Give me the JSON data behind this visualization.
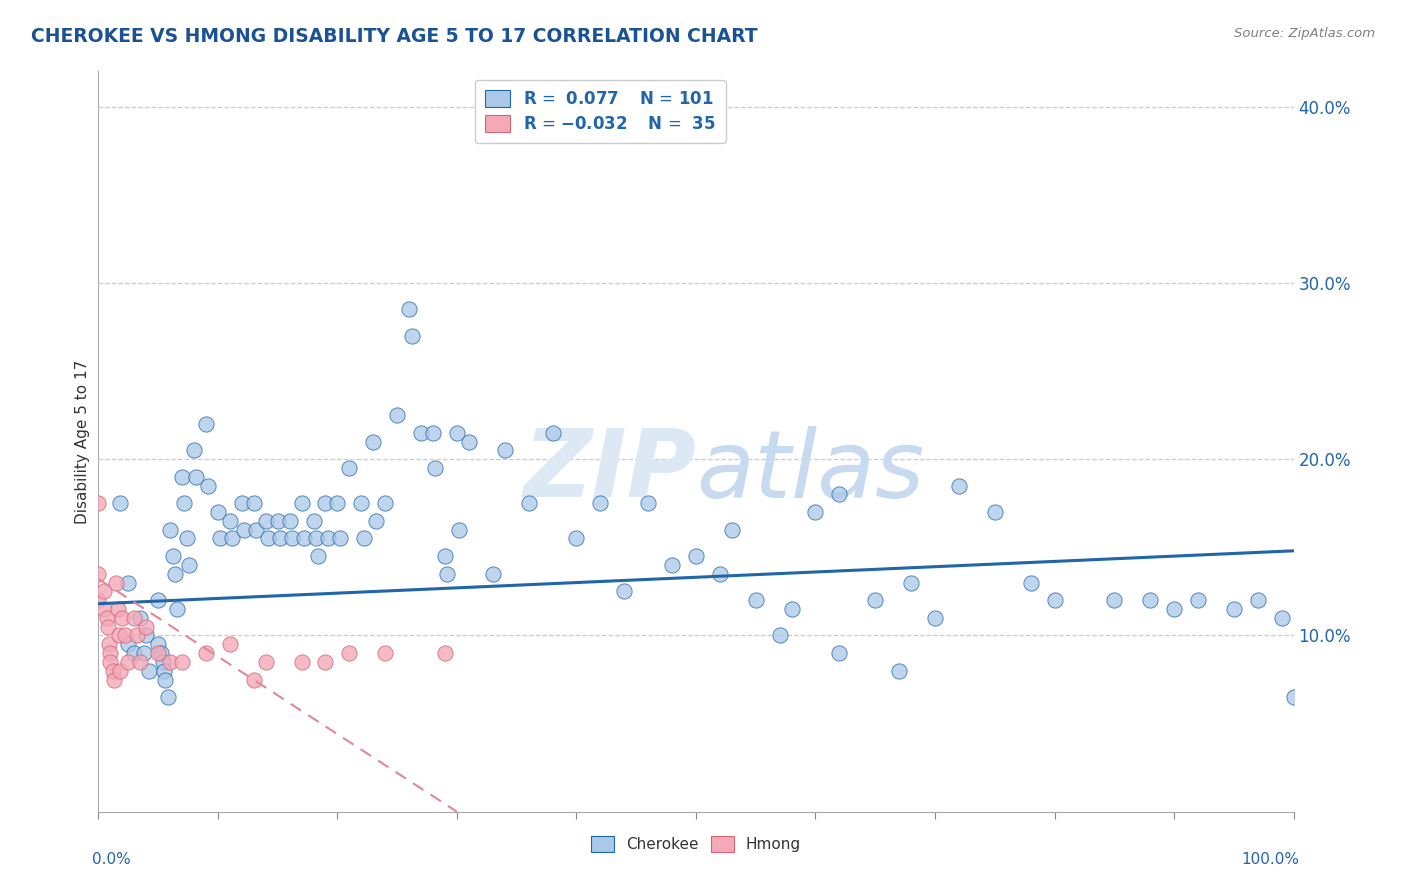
{
  "title": "CHEROKEE VS HMONG DISABILITY AGE 5 TO 17 CORRELATION CHART",
  "source": "Source: ZipAtlas.com",
  "ylabel": "Disability Age 5 to 17",
  "y_ticks": [
    0.0,
    0.1,
    0.2,
    0.3,
    0.4
  ],
  "y_tick_labels": [
    "",
    "10.0%",
    "20.0%",
    "30.0%",
    "40.0%"
  ],
  "x_range": [
    0,
    1.0
  ],
  "y_range": [
    0,
    0.42
  ],
  "cherokee_R": 0.077,
  "cherokee_N": 101,
  "hmong_R": -0.032,
  "hmong_N": 35,
  "cherokee_color": "#aac8e8",
  "hmong_color": "#f4a8b8",
  "cherokee_line_color": "#2266aa",
  "hmong_line_color": "#e08898",
  "background_color": "#ffffff",
  "title_color": "#1a5296",
  "source_color": "#808080",
  "watermark_color": "#dce8f4",
  "cherokee_x": [
    0.018,
    0.025,
    0.025,
    0.03,
    0.035,
    0.038,
    0.04,
    0.042,
    0.05,
    0.05,
    0.052,
    0.054,
    0.055,
    0.056,
    0.058,
    0.06,
    0.062,
    0.064,
    0.066,
    0.07,
    0.072,
    0.074,
    0.076,
    0.08,
    0.082,
    0.09,
    0.092,
    0.1,
    0.102,
    0.11,
    0.112,
    0.12,
    0.122,
    0.13,
    0.132,
    0.14,
    0.142,
    0.15,
    0.152,
    0.16,
    0.162,
    0.17,
    0.172,
    0.18,
    0.182,
    0.184,
    0.19,
    0.192,
    0.2,
    0.202,
    0.21,
    0.22,
    0.222,
    0.23,
    0.232,
    0.24,
    0.25,
    0.26,
    0.262,
    0.27,
    0.28,
    0.282,
    0.29,
    0.292,
    0.3,
    0.302,
    0.31,
    0.33,
    0.34,
    0.36,
    0.38,
    0.4,
    0.42,
    0.44,
    0.46,
    0.5,
    0.52,
    0.55,
    0.58,
    0.6,
    0.62,
    0.65,
    0.68,
    0.7,
    0.75,
    0.78,
    0.8,
    0.85,
    0.88,
    0.9,
    0.92,
    0.95,
    0.97,
    0.99,
    1.0,
    0.48,
    0.53,
    0.57,
    0.62,
    0.67,
    0.72
  ],
  "cherokee_y": [
    0.175,
    0.13,
    0.095,
    0.09,
    0.11,
    0.09,
    0.1,
    0.08,
    0.12,
    0.095,
    0.09,
    0.085,
    0.08,
    0.075,
    0.065,
    0.16,
    0.145,
    0.135,
    0.115,
    0.19,
    0.175,
    0.155,
    0.14,
    0.205,
    0.19,
    0.22,
    0.185,
    0.17,
    0.155,
    0.165,
    0.155,
    0.175,
    0.16,
    0.175,
    0.16,
    0.165,
    0.155,
    0.165,
    0.155,
    0.165,
    0.155,
    0.175,
    0.155,
    0.165,
    0.155,
    0.145,
    0.175,
    0.155,
    0.175,
    0.155,
    0.195,
    0.175,
    0.155,
    0.21,
    0.165,
    0.175,
    0.225,
    0.285,
    0.27,
    0.215,
    0.215,
    0.195,
    0.145,
    0.135,
    0.215,
    0.16,
    0.21,
    0.135,
    0.205,
    0.175,
    0.215,
    0.155,
    0.175,
    0.125,
    0.175,
    0.145,
    0.135,
    0.12,
    0.115,
    0.17,
    0.18,
    0.12,
    0.13,
    0.11,
    0.17,
    0.13,
    0.12,
    0.12,
    0.12,
    0.115,
    0.12,
    0.115,
    0.12,
    0.11,
    0.065,
    0.14,
    0.16,
    0.1,
    0.09,
    0.08,
    0.185
  ],
  "hmong_x": [
    0.0,
    0.0,
    0.0,
    0.005,
    0.005,
    0.007,
    0.008,
    0.009,
    0.01,
    0.01,
    0.012,
    0.013,
    0.015,
    0.016,
    0.017,
    0.018,
    0.02,
    0.022,
    0.025,
    0.03,
    0.032,
    0.035,
    0.04,
    0.05,
    0.06,
    0.07,
    0.09,
    0.11,
    0.13,
    0.14,
    0.17,
    0.19,
    0.21,
    0.24,
    0.29
  ],
  "hmong_y": [
    0.175,
    0.135,
    0.12,
    0.125,
    0.115,
    0.11,
    0.105,
    0.095,
    0.09,
    0.085,
    0.08,
    0.075,
    0.13,
    0.115,
    0.1,
    0.08,
    0.11,
    0.1,
    0.085,
    0.11,
    0.1,
    0.085,
    0.105,
    0.09,
    0.085,
    0.085,
    0.09,
    0.095,
    0.075,
    0.085,
    0.085,
    0.085,
    0.09,
    0.09,
    0.09
  ],
  "cherokee_trend_x0": 0.0,
  "cherokee_trend_y0": 0.118,
  "cherokee_trend_x1": 1.0,
  "cherokee_trend_y1": 0.148,
  "hmong_trend_x0": 0.0,
  "hmong_trend_y0": 0.132,
  "hmong_trend_x1": 0.3,
  "hmong_trend_y1": 0.0
}
